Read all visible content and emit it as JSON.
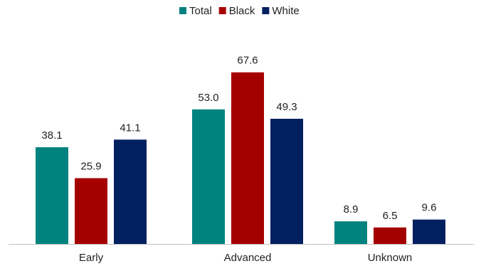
{
  "chart_data": {
    "type": "bar",
    "categories": [
      "Early",
      "Advanced",
      "Unknown"
    ],
    "series": [
      {
        "name": "Total",
        "color": "#00837f",
        "values": [
          38.1,
          53.0,
          8.9
        ]
      },
      {
        "name": "Black",
        "color": "#a50000",
        "values": [
          25.9,
          67.6,
          6.5
        ]
      },
      {
        "name": "White",
        "color": "#002060",
        "values": [
          41.1,
          49.3,
          9.6
        ]
      }
    ],
    "value_labels": [
      [
        "38.1",
        "53.0",
        "8.9"
      ],
      [
        "25.9",
        "67.6",
        "6.5"
      ],
      [
        "41.1",
        "49.3",
        "9.6"
      ]
    ],
    "title": "",
    "xlabel": "",
    "ylabel": "",
    "ylim": [
      0,
      80
    ],
    "grid": false,
    "legend_position": "top-center"
  }
}
